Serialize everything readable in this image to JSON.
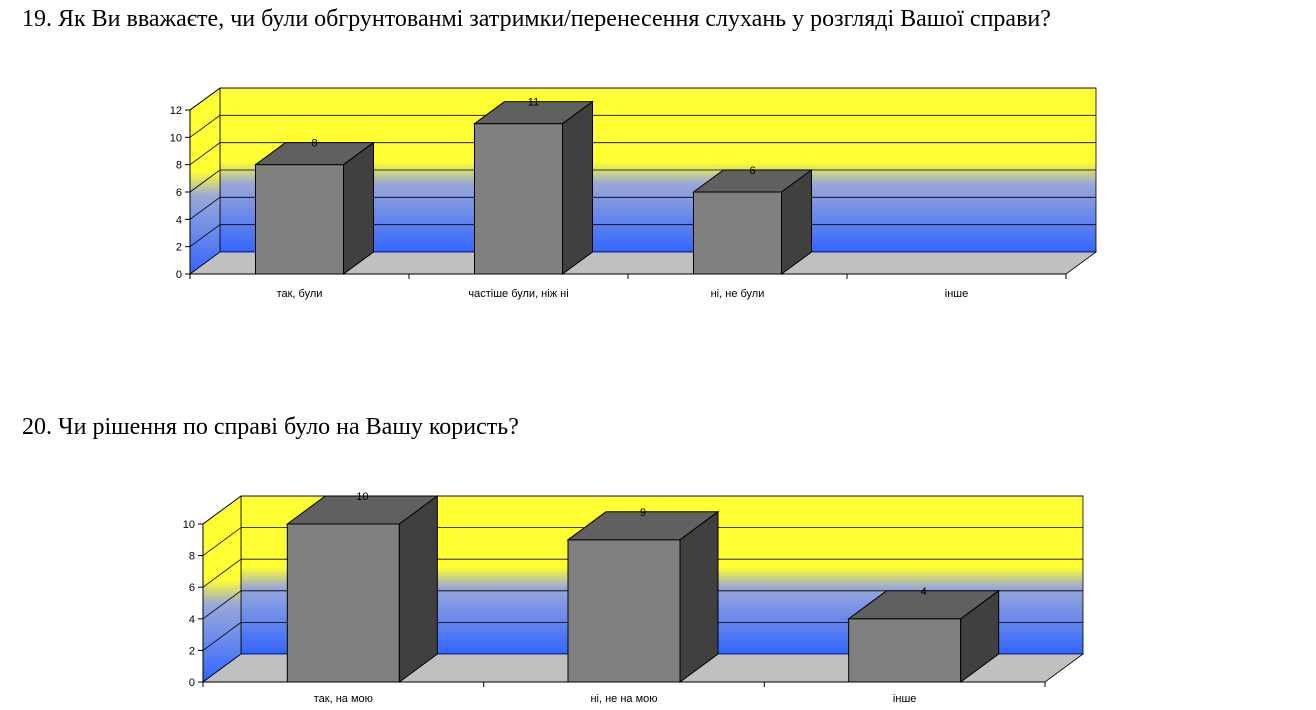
{
  "questions": [
    {
      "title": "19. Як Ви вважаєте, чи були обгрунтованмі затримки/перенесення слухань у розгляді Вашої справи?"
    },
    {
      "title": "20. Чи рішення по справі було на Вашу користь?"
    }
  ],
  "colors": {
    "wall_top": "#ffff33",
    "wall_bottom": "#3366ff",
    "floor": "#c0c0c0",
    "bar_front": "#808080",
    "bar_top": "#606060",
    "bar_side": "#404040"
  },
  "chart_data": [
    {
      "type": "bar",
      "title": "",
      "xlabel": "",
      "ylabel": "",
      "categories": [
        "так, були",
        "частіше були, ніж ні",
        "ні, не були",
        "інше"
      ],
      "values": [
        8,
        11,
        6,
        null
      ],
      "data_labels": [
        "8",
        "11",
        "6",
        ""
      ],
      "ylim": [
        0,
        12
      ],
      "yticks": [
        0,
        2,
        4,
        6,
        8,
        10,
        12
      ],
      "grid": true,
      "style": "3d"
    },
    {
      "type": "bar",
      "title": "",
      "xlabel": "",
      "ylabel": "",
      "categories": [
        "так, на мою",
        "ні, не на мою",
        "інше"
      ],
      "values": [
        10,
        9,
        4
      ],
      "data_labels": [
        "10",
        "9",
        "4"
      ],
      "ylim": [
        0,
        10
      ],
      "yticks": [
        0,
        2,
        4,
        6,
        8,
        10
      ],
      "grid": true,
      "style": "3d"
    }
  ]
}
